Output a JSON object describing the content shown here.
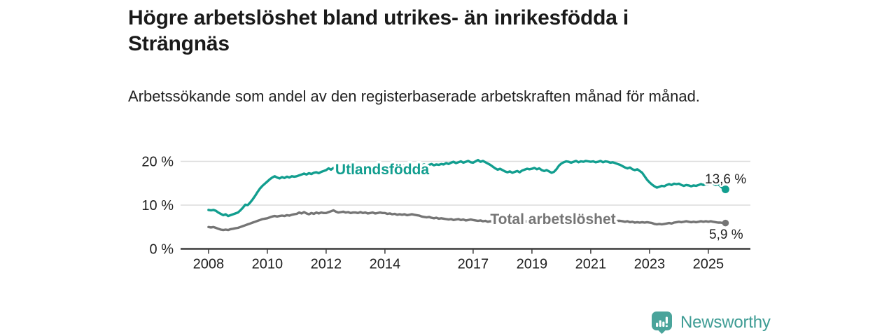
{
  "header": {
    "title": "Högre arbetslöshet bland utrikes- än inrikesfödda i Strängnäs",
    "subtitle": "Arbetssökande som andel av den registerbaserade arbetskraften månad för månad."
  },
  "chart_data": {
    "type": "line",
    "title": "Högre arbetslöshet bland utrikes- än inrikesfödda i Strängnäs",
    "x_unit": "month",
    "x_start_year": 2008,
    "x_ticks": [
      "2008",
      "2010",
      "2012",
      "2014",
      "2017",
      "2019",
      "2021",
      "2023",
      "2025"
    ],
    "y_ticks": [
      {
        "value": 20,
        "label": "20 %"
      },
      {
        "value": 10,
        "label": "10 %"
      },
      {
        "value": 0,
        "label": "0 %"
      }
    ],
    "ylim": [
      0,
      22
    ],
    "grid": "horizontal-only",
    "legend_position": "inline-labels",
    "colors": {
      "grid": "#dcdcdc",
      "axis": "#3c3c3c",
      "tick_text": "#1f1f1f",
      "value_label_text": "#1f1f1f"
    },
    "series": [
      {
        "name": "Utlandsfödda",
        "color": "#129e8f",
        "end_label": "13,6 %",
        "end_value": 13.6,
        "values": [
          8.9,
          8.8,
          8.9,
          8.7,
          8.3,
          8.0,
          7.7,
          7.9,
          7.5,
          7.7,
          7.9,
          8.1,
          8.3,
          8.8,
          9.4,
          10.1,
          10.0,
          10.6,
          11.3,
          12.1,
          13.0,
          13.8,
          14.4,
          14.9,
          15.4,
          15.9,
          16.3,
          16.6,
          16.3,
          16.1,
          16.4,
          16.2,
          16.5,
          16.3,
          16.6,
          16.5,
          16.6,
          16.8,
          17.0,
          17.2,
          17.0,
          17.3,
          17.1,
          17.4,
          17.5,
          17.3,
          17.6,
          17.8,
          18.0,
          18.4,
          18.1,
          18.5,
          18.3,
          18.6,
          18.4,
          18.7,
          18.5,
          18.3,
          18.6,
          18.4,
          18.5,
          18.7,
          18.4,
          18.6,
          18.8,
          18.5,
          18.7,
          18.6,
          18.8,
          18.7,
          18.5,
          18.6,
          18.8,
          18.6,
          18.9,
          18.7,
          19.0,
          18.8,
          18.6,
          18.9,
          19.1,
          18.9,
          19.0,
          18.8,
          19.0,
          19.2,
          18.9,
          19.1,
          19.3,
          19.0,
          19.2,
          19.4,
          19.1,
          19.3,
          19.2,
          19.4,
          19.3,
          19.6,
          19.4,
          19.7,
          19.9,
          19.6,
          19.8,
          20.0,
          19.7,
          19.9,
          20.1,
          19.8,
          19.7,
          20.0,
          20.3,
          19.9,
          20.1,
          19.8,
          19.5,
          19.2,
          18.8,
          18.4,
          18.1,
          18.3,
          18.0,
          17.7,
          17.5,
          17.7,
          17.4,
          17.6,
          17.8,
          17.5,
          17.9,
          18.1,
          18.3,
          18.2,
          18.3,
          18.5,
          18.2,
          18.4,
          18.0,
          17.8,
          18.0,
          17.7,
          17.4,
          17.6,
          18.2,
          19.0,
          19.5,
          19.8,
          20.0,
          19.9,
          19.7,
          19.9,
          20.1,
          19.8,
          20.0,
          19.9,
          20.1,
          20.0,
          19.9,
          20.0,
          19.8,
          19.9,
          20.1,
          19.8,
          20.0,
          19.9,
          19.7,
          19.8,
          19.6,
          19.4,
          19.2,
          18.9,
          18.6,
          18.4,
          18.6,
          18.2,
          18.0,
          18.2,
          17.8,
          17.4,
          16.6,
          15.8,
          15.2,
          14.7,
          14.3,
          14.0,
          14.2,
          14.4,
          14.3,
          14.6,
          14.8,
          14.6,
          14.9,
          14.8,
          14.9,
          14.6,
          14.4,
          14.6,
          14.5,
          14.3,
          14.5,
          14.4,
          14.6,
          14.8,
          14.6,
          14.8,
          14.8,
          15.0,
          14.9,
          14.6,
          14.8,
          14.3,
          13.8,
          13.6
        ]
      },
      {
        "name": "Total arbetslöshet",
        "color": "#757575",
        "end_label": "5,9 %",
        "end_value": 5.9,
        "values": [
          5.0,
          4.9,
          5.0,
          4.8,
          4.6,
          4.4,
          4.3,
          4.4,
          4.3,
          4.5,
          4.6,
          4.7,
          4.8,
          5.0,
          5.2,
          5.4,
          5.6,
          5.8,
          6.0,
          6.2,
          6.4,
          6.6,
          6.8,
          6.9,
          7.0,
          7.2,
          7.4,
          7.5,
          7.4,
          7.5,
          7.6,
          7.5,
          7.7,
          7.6,
          7.8,
          7.9,
          8.0,
          8.3,
          8.1,
          8.4,
          8.1,
          7.9,
          8.2,
          8.0,
          8.3,
          8.1,
          8.3,
          8.2,
          8.2,
          8.4,
          8.6,
          8.8,
          8.5,
          8.3,
          8.4,
          8.5,
          8.3,
          8.4,
          8.2,
          8.3,
          8.3,
          8.2,
          8.4,
          8.2,
          8.3,
          8.1,
          8.2,
          8.3,
          8.1,
          8.2,
          8.3,
          8.2,
          8.2,
          8.0,
          8.1,
          7.9,
          8.0,
          7.8,
          7.9,
          7.8,
          7.9,
          7.7,
          7.8,
          7.9,
          7.8,
          7.7,
          7.6,
          7.4,
          7.3,
          7.2,
          7.3,
          7.1,
          7.0,
          7.1,
          6.9,
          7.0,
          6.9,
          6.8,
          6.7,
          6.8,
          6.6,
          6.7,
          6.8,
          6.6,
          6.7,
          6.5,
          6.6,
          6.7,
          6.6,
          6.5,
          6.4,
          6.5,
          6.3,
          6.4,
          6.2,
          6.3,
          6.2,
          6.3,
          6.2,
          6.3,
          6.2,
          6.3,
          6.1,
          6.2,
          6.3,
          6.2,
          6.1,
          6.2,
          6.3,
          6.2,
          6.3,
          6.2,
          6.2,
          6.3,
          6.2,
          6.1,
          6.2,
          6.3,
          6.2,
          6.4,
          6.5,
          6.6,
          6.7,
          6.8,
          6.9,
          7.0,
          7.1,
          7.0,
          6.9,
          7.0,
          6.9,
          6.8,
          6.9,
          6.8,
          6.9,
          6.8,
          6.8,
          6.7,
          6.8,
          6.6,
          6.7,
          6.5,
          6.6,
          6.4,
          6.5,
          6.4,
          6.3,
          6.4,
          6.4,
          6.3,
          6.2,
          6.3,
          6.1,
          6.2,
          6.0,
          6.1,
          6.0,
          6.1,
          6.0,
          6.1,
          6.0,
          5.9,
          5.7,
          5.6,
          5.7,
          5.6,
          5.7,
          5.8,
          5.9,
          5.8,
          6.0,
          6.1,
          6.2,
          6.1,
          6.2,
          6.3,
          6.2,
          6.1,
          6.2,
          6.1,
          6.2,
          6.3,
          6.2,
          6.3,
          6.2,
          6.3,
          6.2,
          6.1,
          6.0,
          6.0,
          5.9,
          5.9
        ]
      }
    ]
  },
  "footer": {
    "brand": "Newsworthy"
  }
}
